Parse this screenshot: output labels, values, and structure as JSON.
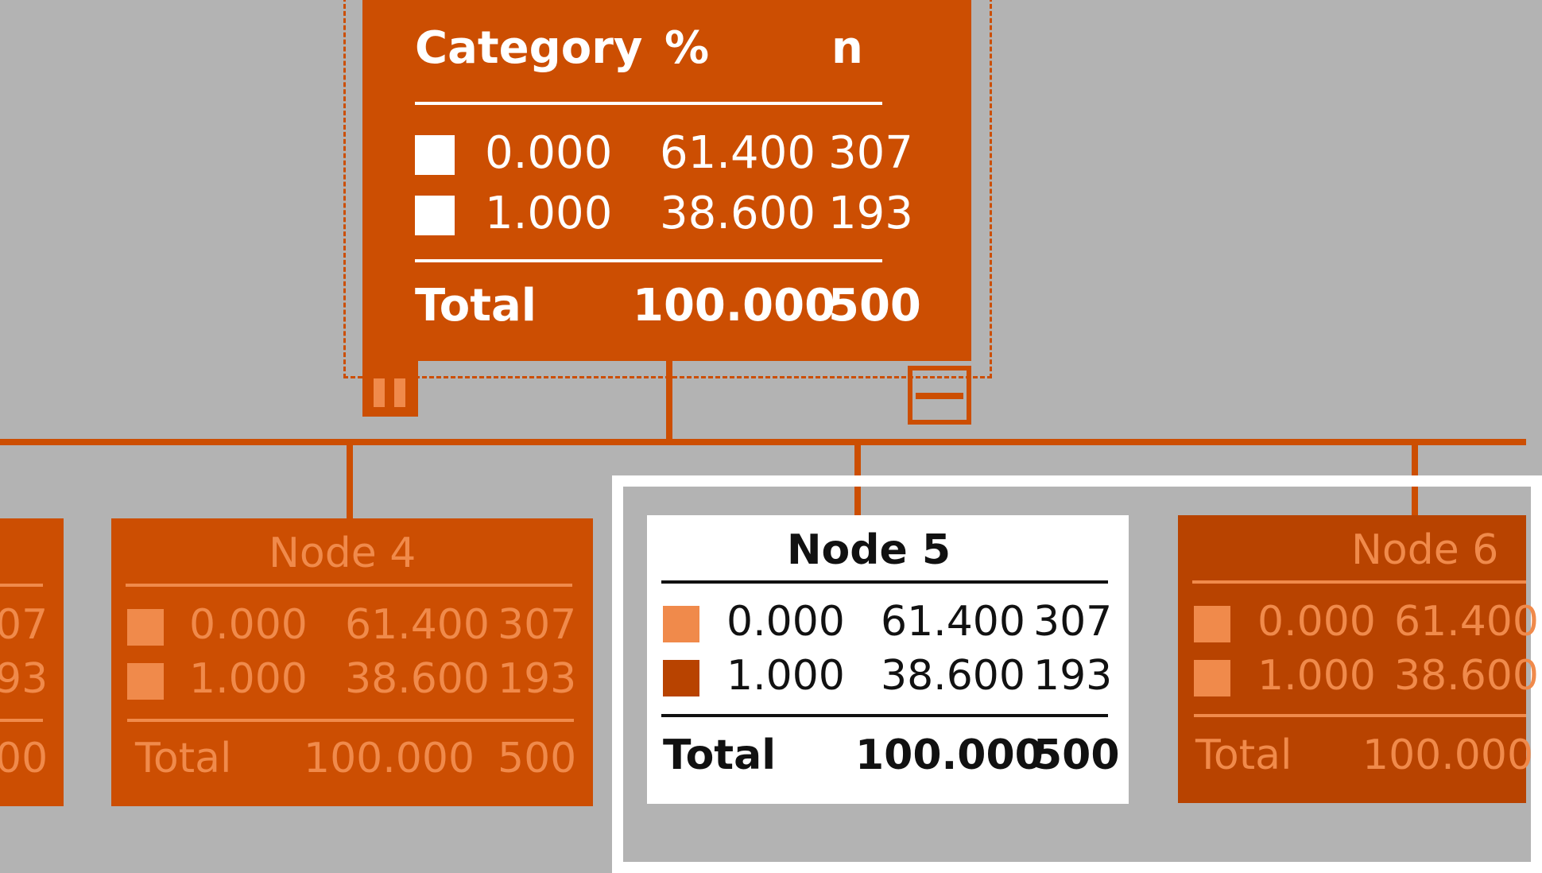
{
  "root": {
    "header": {
      "category": "Category",
      "pct": "%",
      "n": "n"
    },
    "rows": [
      {
        "category": "0.000",
        "pct": "61.400",
        "n": "307"
      },
      {
        "category": "1.000",
        "pct": "38.600",
        "n": "193"
      }
    ],
    "total": {
      "label": "Total",
      "pct": "100.000",
      "n": "500"
    }
  },
  "left_partial": {
    "rows": [
      {
        "tail": "07"
      },
      {
        "tail": "93"
      }
    ],
    "total_tail": "00"
  },
  "node4": {
    "title": "Node 4",
    "rows": [
      {
        "category": "0.000",
        "pct": "61.400",
        "n": "307"
      },
      {
        "category": "1.000",
        "pct": "38.600",
        "n": "193"
      }
    ],
    "total": {
      "label": "Total",
      "pct": "100.000",
      "n": "500"
    }
  },
  "node5": {
    "title": "Node 5",
    "rows": [
      {
        "category": "0.000",
        "pct": "61.400",
        "n": "307"
      },
      {
        "category": "1.000",
        "pct": "38.600",
        "n": "193"
      }
    ],
    "total": {
      "label": "Total",
      "pct": "100.000",
      "n": "500"
    }
  },
  "node6": {
    "title": "Node 6",
    "rows": [
      {
        "category": "0.000",
        "pct": "61.400"
      },
      {
        "category": "1.000",
        "pct": "38.600"
      }
    ],
    "total": {
      "label": "Total",
      "pct": "100.000"
    }
  },
  "colors": {
    "node": "#cc4e02",
    "node_dark": "#b84300",
    "faded_text": "#f08a4b",
    "background": "#b3b3b3",
    "swatch_light": "#f08a4b",
    "swatch_dark": "#b84300"
  },
  "icons": {
    "collapse": "split-bars-icon",
    "expand": "table-icon"
  }
}
